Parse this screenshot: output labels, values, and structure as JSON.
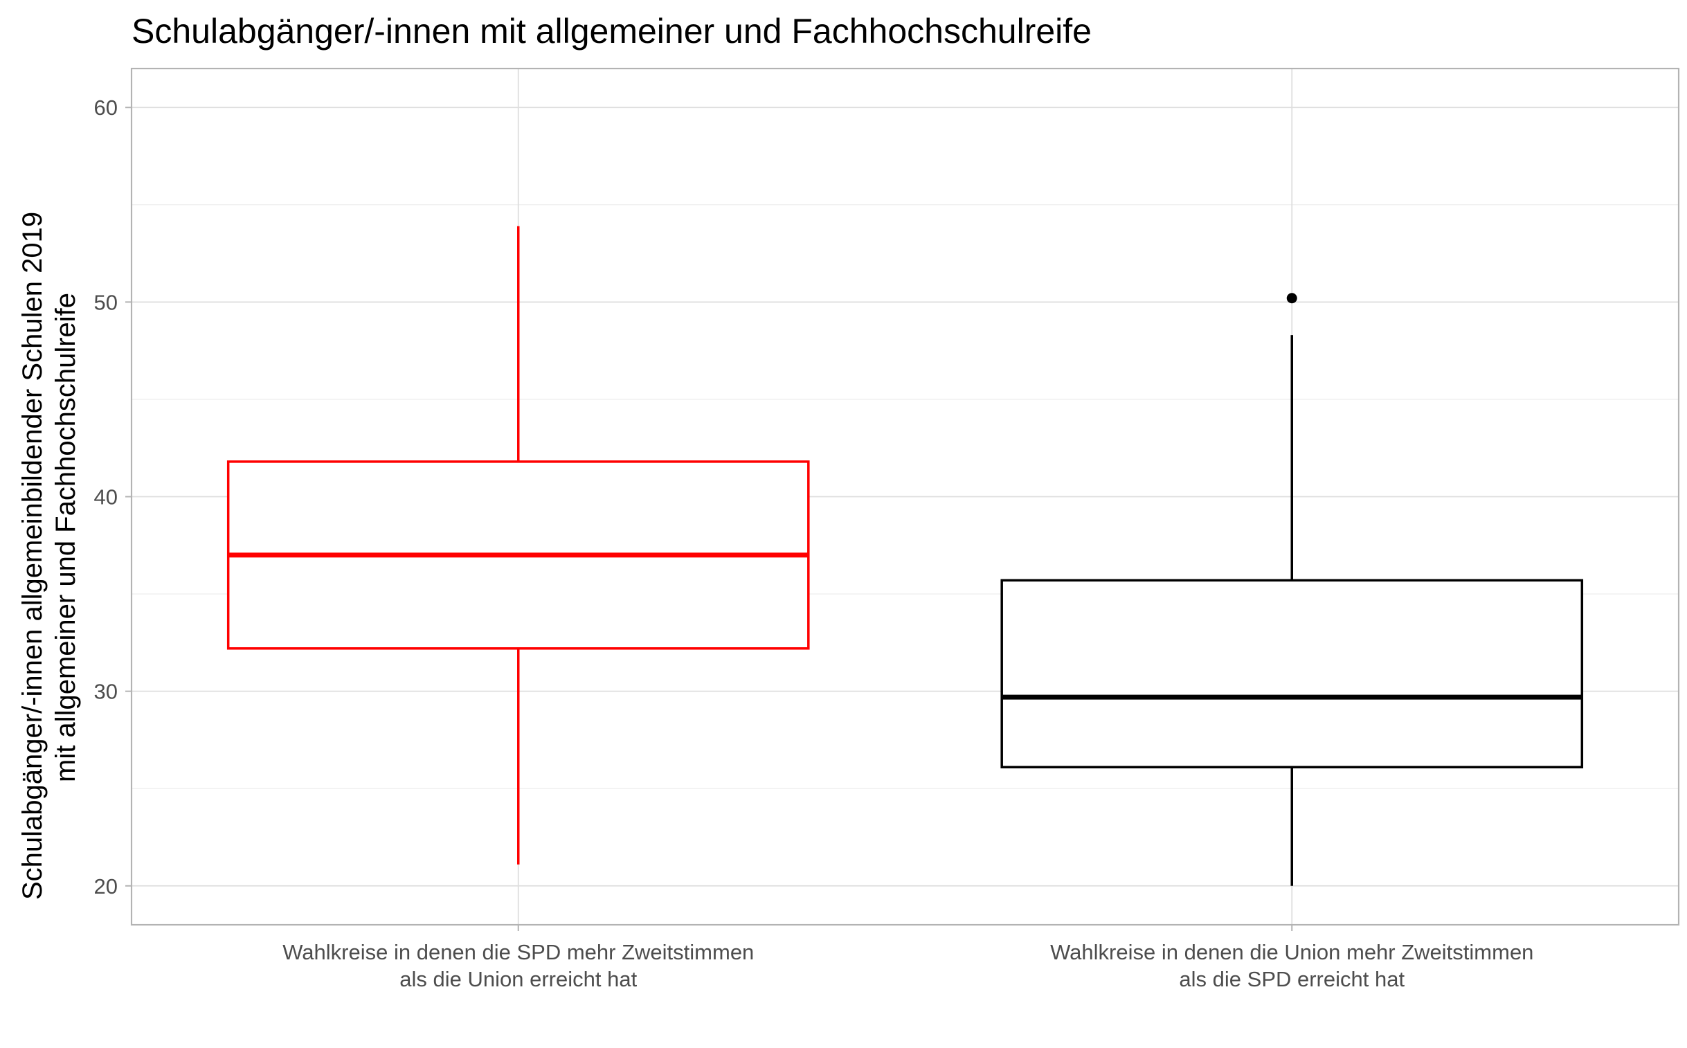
{
  "chart_data": {
    "type": "boxplot",
    "title": "Schulabgänger/-innen mit allgemeiner und Fachhochschulreife",
    "ylabel_lines": [
      "Schulabgänger/-innen allgemeinbildender Schulen 2019",
      "mit allgemeiner und Fachhochschulreife"
    ],
    "xlabel": "",
    "ylim": [
      18,
      62
    ],
    "y_ticks": [
      20,
      30,
      40,
      50,
      60
    ],
    "y_minor_ticks": [
      25,
      35,
      45,
      55
    ],
    "grid": true,
    "categories": [
      {
        "label_lines": [
          "Wahlkreise in denen die SPD mehr Zweitstimmen",
          "als die Union erreicht hat"
        ],
        "color": "#ff0000",
        "whisker_low": 21.1,
        "q1": 32.2,
        "median": 37.0,
        "q3": 41.8,
        "whisker_high": 53.9,
        "outliers": []
      },
      {
        "label_lines": [
          "Wahlkreise in denen die Union mehr Zweitstimmen",
          "als die SPD erreicht hat"
        ],
        "color": "#000000",
        "whisker_low": 20.0,
        "q1": 26.1,
        "median": 29.7,
        "q3": 35.7,
        "whisker_high": 48.3,
        "outliers": [
          50.2
        ]
      }
    ]
  }
}
